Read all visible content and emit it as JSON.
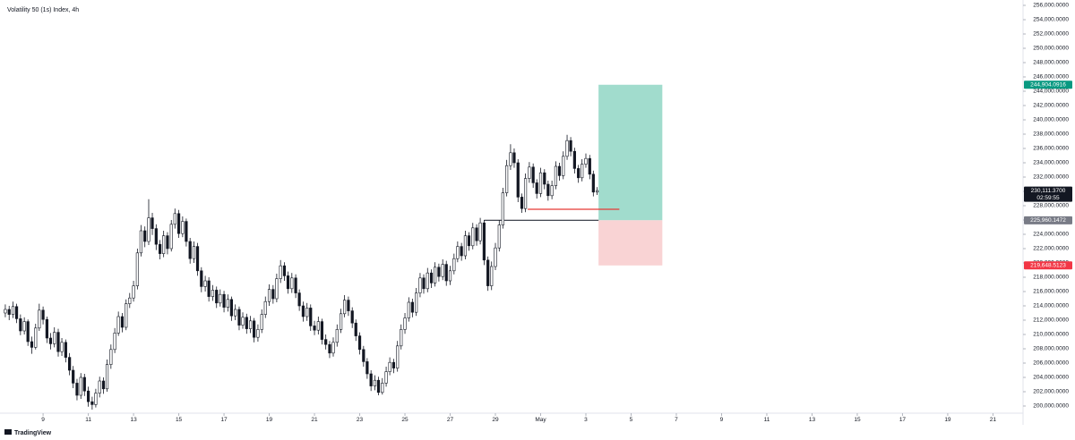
{
  "chart_data": {
    "type": "candlestick",
    "title": "Volatility 50 (1s) Index, 4h",
    "footer": "TradingView",
    "x": [
      7.33,
      7.5,
      7.67,
      7.83,
      8,
      8.17,
      8.33,
      8.5,
      8.67,
      8.83,
      9,
      9.17,
      9.33,
      9.5,
      9.67,
      9.83,
      10,
      10.17,
      10.33,
      10.5,
      10.67,
      10.83,
      11,
      11.17,
      11.33,
      11.5,
      11.67,
      11.83,
      12,
      12.17,
      12.33,
      12.5,
      12.67,
      12.83,
      13,
      13.17,
      13.33,
      13.5,
      13.67,
      13.83,
      14,
      14.17,
      14.33,
      14.5,
      14.67,
      14.83,
      15,
      15.17,
      15.33,
      15.5,
      15.67,
      15.83,
      16,
      16.17,
      16.33,
      16.5,
      16.67,
      16.83,
      17,
      17.17,
      17.33,
      17.5,
      17.67,
      17.83,
      18,
      18.17,
      18.33,
      18.5,
      18.67,
      18.83,
      19,
      19.17,
      19.33,
      19.5,
      19.67,
      19.83,
      20,
      20.17,
      20.33,
      20.5,
      20.67,
      20.83,
      21,
      21.17,
      21.33,
      21.5,
      21.67,
      21.83,
      22,
      22.17,
      22.33,
      22.5,
      22.67,
      22.83,
      23,
      23.17,
      23.33,
      23.5,
      23.67,
      23.83,
      24,
      24.17,
      24.33,
      24.5,
      24.67,
      24.83,
      25,
      25.17,
      25.33,
      25.5,
      25.67,
      25.83,
      26,
      26.17,
      26.33,
      26.5,
      26.67,
      26.83,
      27,
      27.17,
      27.33,
      27.5,
      27.67,
      27.83,
      28,
      28.17,
      28.33,
      28.5,
      28.67,
      28.83,
      29,
      29.17,
      29.33,
      29.5,
      29.67,
      29.83,
      30,
      30.17,
      30.33,
      30.5,
      30.67,
      30.83,
      31,
      31.17,
      31.33,
      31.5,
      31.67,
      31.83,
      32,
      32.17,
      32.33,
      32.5,
      32.67,
      32.83,
      33,
      33.17,
      33.33,
      33.5
    ],
    "ohlc": [
      [
        213000,
        214200,
        212400,
        213500
      ],
      [
        213500,
        214000,
        212000,
        212800
      ],
      [
        212800,
        214600,
        212300,
        213900
      ],
      [
        213900,
        214300,
        211600,
        212200
      ],
      [
        212200,
        212800,
        209900,
        210500
      ],
      [
        210500,
        212400,
        210000,
        211800
      ],
      [
        211800,
        212100,
        208400,
        209000
      ],
      [
        209000,
        209700,
        207300,
        208200
      ],
      [
        208200,
        211500,
        207900,
        210900
      ],
      [
        210900,
        214300,
        210500,
        213400
      ],
      [
        213400,
        213900,
        211400,
        212100
      ],
      [
        212100,
        212500,
        208800,
        209500
      ],
      [
        209500,
        210200,
        207900,
        208700
      ],
      [
        208700,
        211000,
        208200,
        210300
      ],
      [
        210300,
        210800,
        206900,
        207600
      ],
      [
        207600,
        209500,
        207000,
        208900
      ],
      [
        208900,
        209300,
        206100,
        206800
      ],
      [
        206800,
        207400,
        204300,
        205000
      ],
      [
        205000,
        205600,
        202500,
        203200
      ],
      [
        203200,
        203800,
        200800,
        201500
      ],
      [
        201500,
        204600,
        201000,
        204000
      ],
      [
        204000,
        204500,
        201400,
        202100
      ],
      [
        202100,
        202700,
        199900,
        200600
      ],
      [
        200600,
        201300,
        199500,
        200200
      ],
      [
        200200,
        202400,
        199800,
        201800
      ],
      [
        201800,
        204100,
        201200,
        203500
      ],
      [
        203500,
        204000,
        201700,
        202400
      ],
      [
        202400,
        206500,
        202000,
        205800
      ],
      [
        205800,
        208600,
        205200,
        207900
      ],
      [
        207900,
        210900,
        207400,
        210200
      ],
      [
        210200,
        213200,
        209800,
        212500
      ],
      [
        212500,
        213000,
        210300,
        211000
      ],
      [
        211000,
        214900,
        210600,
        214300
      ],
      [
        214300,
        215800,
        213700,
        215100
      ],
      [
        215100,
        217500,
        214600,
        216800
      ],
      [
        216800,
        222000,
        216300,
        221400
      ],
      [
        221400,
        225300,
        220900,
        224500
      ],
      [
        224500,
        225100,
        222200,
        223000
      ],
      [
        223000,
        228900,
        222500,
        226300
      ],
      [
        226300,
        227000,
        223900,
        224800
      ],
      [
        224800,
        225400,
        221800,
        222600
      ],
      [
        222600,
        223200,
        220500,
        221300
      ],
      [
        221300,
        224500,
        220800,
        223800
      ],
      [
        223800,
        224300,
        221200,
        222000
      ],
      [
        222000,
        226000,
        221600,
        225400
      ],
      [
        225400,
        227600,
        224800,
        226900
      ],
      [
        226900,
        227400,
        223500,
        224100
      ],
      [
        224100,
        226500,
        223600,
        225800
      ],
      [
        225800,
        226200,
        222300,
        223000
      ],
      [
        223000,
        223500,
        219900,
        220600
      ],
      [
        220600,
        223000,
        220000,
        222300
      ],
      [
        222300,
        222800,
        218200,
        218900
      ],
      [
        218900,
        219400,
        215900,
        216700
      ],
      [
        216700,
        218200,
        216000,
        217500
      ],
      [
        217500,
        218000,
        214600,
        215300
      ],
      [
        215300,
        216900,
        214700,
        216200
      ],
      [
        216200,
        216700,
        213700,
        214400
      ],
      [
        214400,
        216300,
        213900,
        215600
      ],
      [
        215600,
        216100,
        213100,
        213800
      ],
      [
        213800,
        215600,
        213200,
        214900
      ],
      [
        214900,
        215300,
        211900,
        212600
      ],
      [
        212600,
        214200,
        212000,
        213500
      ],
      [
        213500,
        213900,
        210600,
        211300
      ],
      [
        211300,
        213100,
        210800,
        212400
      ],
      [
        212400,
        212900,
        210100,
        210800
      ],
      [
        210800,
        212600,
        210200,
        211900
      ],
      [
        211900,
        212300,
        208900,
        209600
      ],
      [
        209600,
        211400,
        209000,
        210700
      ],
      [
        210700,
        213500,
        210200,
        212800
      ],
      [
        212800,
        215300,
        212300,
        214600
      ],
      [
        214600,
        217000,
        214000,
        216300
      ],
      [
        216300,
        216900,
        214300,
        215000
      ],
      [
        215000,
        218500,
        214500,
        217800
      ],
      [
        217800,
        220400,
        217200,
        219600
      ],
      [
        219600,
        220100,
        217500,
        218200
      ],
      [
        218200,
        218800,
        215700,
        216400
      ],
      [
        216400,
        218600,
        215800,
        217900
      ],
      [
        217900,
        218400,
        215100,
        215800
      ],
      [
        215800,
        216300,
        213300,
        214000
      ],
      [
        214000,
        214600,
        211800,
        212500
      ],
      [
        212500,
        214400,
        211900,
        213700
      ],
      [
        213700,
        214200,
        210500,
        211200
      ],
      [
        211200,
        211900,
        209900,
        210600
      ],
      [
        210600,
        212500,
        210000,
        211800
      ],
      [
        211800,
        212200,
        208600,
        209300
      ],
      [
        209300,
        210000,
        207900,
        208600
      ],
      [
        208600,
        209100,
        206700,
        207400
      ],
      [
        207400,
        209600,
        206900,
        208900
      ],
      [
        208900,
        211400,
        208300,
        210700
      ],
      [
        210700,
        213600,
        210200,
        212900
      ],
      [
        212900,
        215500,
        212400,
        214800
      ],
      [
        214800,
        215300,
        212600,
        213300
      ],
      [
        213300,
        213800,
        210900,
        211600
      ],
      [
        211600,
        212100,
        209100,
        209800
      ],
      [
        209800,
        210300,
        207200,
        207900
      ],
      [
        207900,
        208400,
        205500,
        206200
      ],
      [
        206200,
        206700,
        203800,
        204500
      ],
      [
        204500,
        205000,
        202100,
        202800
      ],
      [
        202800,
        204300,
        202200,
        203600
      ],
      [
        203600,
        204100,
        201500,
        201900
      ],
      [
        201900,
        203900,
        201600,
        203200
      ],
      [
        203200,
        205500,
        202700,
        204800
      ],
      [
        204800,
        206800,
        204300,
        206100
      ],
      [
        206100,
        206600,
        204600,
        205300
      ],
      [
        205300,
        209100,
        204800,
        208400
      ],
      [
        208400,
        211400,
        207900,
        210700
      ],
      [
        210700,
        213000,
        210100,
        212300
      ],
      [
        212300,
        215200,
        211800,
        214500
      ],
      [
        214500,
        215000,
        212400,
        213100
      ],
      [
        213100,
        216500,
        212600,
        215800
      ],
      [
        215800,
        218600,
        215200,
        217900
      ],
      [
        217900,
        218400,
        215700,
        216400
      ],
      [
        216400,
        219300,
        215900,
        218600
      ],
      [
        218600,
        219100,
        216500,
        217200
      ],
      [
        217200,
        220100,
        216700,
        219400
      ],
      [
        219400,
        219900,
        217400,
        218100
      ],
      [
        218100,
        220500,
        217600,
        219800
      ],
      [
        219800,
        220300,
        216800,
        217500
      ],
      [
        217500,
        219600,
        216900,
        218900
      ],
      [
        218900,
        221300,
        218400,
        220600
      ],
      [
        220600,
        223000,
        220100,
        222300
      ],
      [
        222300,
        222800,
        220300,
        221000
      ],
      [
        221000,
        224500,
        220500,
        223800
      ],
      [
        223800,
        224300,
        221700,
        222400
      ],
      [
        222400,
        225600,
        221900,
        224900
      ],
      [
        224900,
        225400,
        222400,
        223100
      ],
      [
        223100,
        226300,
        222600,
        225600
      ],
      [
        225600,
        226000,
        219700,
        220400
      ],
      [
        220400,
        220900,
        216100,
        216800
      ],
      [
        216800,
        220200,
        216200,
        219500
      ],
      [
        219500,
        222800,
        219000,
        222100
      ],
      [
        222100,
        226000,
        221600,
        225300
      ],
      [
        225300,
        230500,
        224800,
        229800
      ],
      [
        229800,
        234400,
        229300,
        233600
      ],
      [
        233600,
        236600,
        233000,
        235400
      ],
      [
        235400,
        236000,
        233300,
        234000
      ],
      [
        234000,
        234500,
        228500,
        229200
      ],
      [
        229200,
        229700,
        227000,
        227600
      ],
      [
        227600,
        232500,
        227100,
        231800
      ],
      [
        231800,
        234100,
        231200,
        233400
      ],
      [
        233400,
        233900,
        230500,
        231200
      ],
      [
        231200,
        231700,
        229000,
        229700
      ],
      [
        229700,
        233300,
        229200,
        232600
      ],
      [
        232600,
        233100,
        230300,
        231000
      ],
      [
        231000,
        231500,
        228700,
        229400
      ],
      [
        229400,
        231500,
        228900,
        230800
      ],
      [
        230800,
        234200,
        230300,
        233500
      ],
      [
        233500,
        234000,
        231500,
        232200
      ],
      [
        232200,
        235600,
        231700,
        234900
      ],
      [
        234900,
        237900,
        234400,
        237100
      ],
      [
        237100,
        237600,
        234900,
        235600
      ],
      [
        235600,
        236100,
        232500,
        233200
      ],
      [
        233200,
        233700,
        231200,
        231900
      ],
      [
        231900,
        234500,
        231400,
        233800
      ],
      [
        233800,
        235300,
        233300,
        234600
      ],
      [
        234600,
        235100,
        231700,
        232400
      ],
      [
        232400,
        232900,
        229300,
        229900
      ],
      [
        229900,
        230600,
        229500,
        230111.37
      ]
    ],
    "up_color": "#ffffff",
    "down_color": "#131722",
    "xlim": [
      7.095,
      52.33
    ],
    "ylim": [
      199000,
      256750
    ],
    "xticks": [
      9,
      11,
      13,
      15,
      17,
      19,
      21,
      23,
      25,
      27,
      29,
      {
        "value": 31,
        "label": "May"
      },
      {
        "value": 33,
        "label": "3"
      },
      {
        "value": 35,
        "label": "5"
      },
      {
        "value": 37,
        "label": "7"
      },
      {
        "value": 39,
        "label": "9"
      },
      {
        "value": 41,
        "label": "11"
      },
      {
        "value": 43,
        "label": "13"
      },
      {
        "value": 45,
        "label": "15"
      },
      {
        "value": 47,
        "label": "17"
      },
      {
        "value": 49,
        "label": "19"
      },
      {
        "value": 51,
        "label": "21"
      }
    ],
    "yticks": [
      {
        "value": 200000,
        "label": "200,000.0000"
      },
      {
        "value": 202000,
        "label": "202,000.0000"
      },
      {
        "value": 204000,
        "label": "204,000.0000"
      },
      {
        "value": 206000,
        "label": "206,000.0000"
      },
      {
        "value": 208000,
        "label": "208,000.0000"
      },
      {
        "value": 210000,
        "label": "210,000.0000"
      },
      {
        "value": 212000,
        "label": "212,000.0000"
      },
      {
        "value": 214000,
        "label": "214,000.0000"
      },
      {
        "value": 216000,
        "label": "216,000.0000"
      },
      {
        "value": 218000,
        "label": "218,000.0000"
      },
      {
        "value": 220000,
        "label": "220,000.0000"
      },
      {
        "value": 222000,
        "label": "222,000.0000"
      },
      {
        "value": 224000,
        "label": "224,000.0000"
      },
      {
        "value": 226000,
        "label": "226,000.0000"
      },
      {
        "value": 228000,
        "label": "228,000.0000"
      },
      {
        "value": 230000,
        "label": "230,000.0000"
      },
      {
        "value": 232000,
        "label": "232,000.0000"
      },
      {
        "value": 234000,
        "label": "234,000.0000"
      },
      {
        "value": 236000,
        "label": "236,000.0000"
      },
      {
        "value": 238000,
        "label": "238,000.0000"
      },
      {
        "value": 240000,
        "label": "240,000.0000"
      },
      {
        "value": 242000,
        "label": "242,000.0000"
      },
      {
        "value": 244000,
        "label": "244,000.0000"
      },
      {
        "value": 246000,
        "label": "246,000.0000"
      },
      {
        "value": 248000,
        "label": "248,000.0000"
      },
      {
        "value": 250000,
        "label": "250,000.0000"
      },
      {
        "value": 252000,
        "label": "252,000.0000"
      },
      {
        "value": 254000,
        "label": "254,000.0000"
      },
      {
        "value": 256000,
        "label": "256,000.0000"
      }
    ],
    "grid": false,
    "position": {
      "x_start": 33.56,
      "x_end": 36.38,
      "entry": 225960.1472,
      "target": 244904.0916,
      "stop": 219648.5123,
      "profit_color": "#a1dccd",
      "loss_color": "#f9d3d4"
    },
    "lines": [
      {
        "x": [
          28.5,
          33.56
        ],
        "y": 225960.1472,
        "color": "#2a2e39"
      },
      {
        "x": [
          30.43,
          34.48
        ],
        "y": 227500,
        "color": "#e53935"
      }
    ],
    "price_labels": [
      {
        "value": 244904.0916,
        "label": "244,904.0916",
        "color": "#089981"
      },
      {
        "value": 230111.37,
        "label": "230,111.3700",
        "color": "#131722",
        "sub": "02:59:55"
      },
      {
        "value": 225960.1472,
        "label": "225,960.1472",
        "color": "#787b86"
      },
      {
        "value": 219648.5123,
        "label": "219,648.5123",
        "color": "#f23645"
      }
    ]
  }
}
